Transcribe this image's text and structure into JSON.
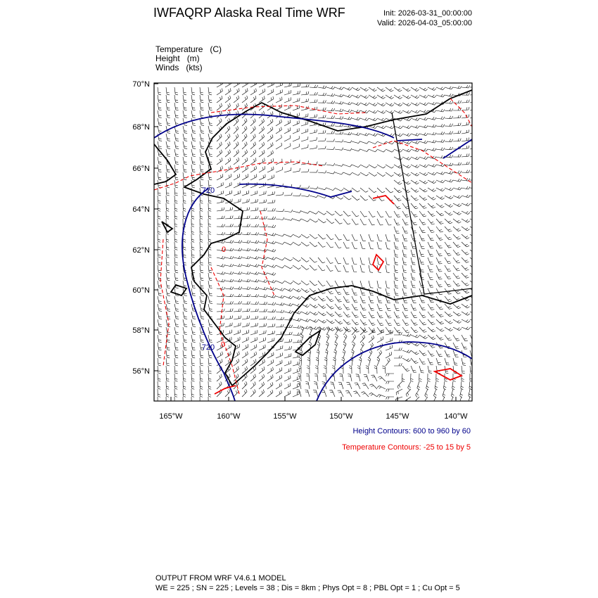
{
  "header": {
    "title": "IWFAQRP Alaska Real Time WRF",
    "init": "Init: 2026-03-31_00:00:00",
    "valid": "Valid: 2026-04-03_05:00:00"
  },
  "fields": [
    "Temperature   (C)",
    "Height   (m)",
    "Winds   (kts)"
  ],
  "map": {
    "lat_labels": [
      "70°N",
      "68°N",
      "66°N",
      "64°N",
      "62°N",
      "60°N",
      "58°N",
      "56°N"
    ],
    "lon_labels": [
      "165°W",
      "160°W",
      "155°W",
      "150°W",
      "145°W",
      "140°W"
    ],
    "contour_labels": [
      "720",
      "0",
      "720",
      "0"
    ]
  },
  "notes": {
    "height": "Height Contours: 600 to 960 by 60",
    "temperature": "Temperature Contours: -25 to 15 by 5"
  },
  "footer": {
    "model": "OUTPUT FROM WRF V4.6.1 MODEL",
    "settings": "WE = 225 ; SN = 225 ; Levels = 38 ; Dis = 8km ; Phys Opt = 8 ; PBL Opt = 1 ; Cu Opt = 5"
  }
}
